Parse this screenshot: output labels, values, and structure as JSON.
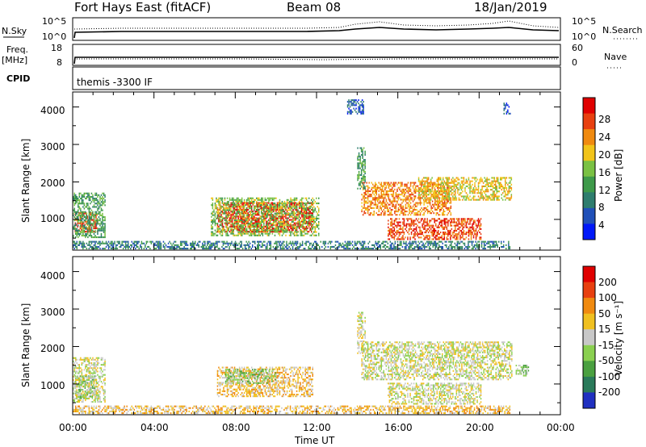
{
  "header": {
    "station": "Fort Hays East (fitACF)",
    "beam": "Beam 08",
    "date": "18/Jan/2019"
  },
  "strips": {
    "nsky_label": "N.Sky",
    "nsky_ticks": [
      "10^5",
      "10^0"
    ],
    "nsearch_label": "N.Search",
    "nsearch_ticks": [
      "10^5",
      "10^0"
    ],
    "freq_label": "Freq.",
    "freq_unit": "[MHz]",
    "freq_ticks": [
      "18",
      "8"
    ],
    "nave_label": "Nave",
    "nave_ticks": [
      "60",
      "0"
    ],
    "cpid_label": "CPID",
    "cpid_text": "themis -3300 IF"
  },
  "chart_data": [
    {
      "type": "heatmap",
      "name": "power-panel",
      "ylabel": "Slant Range [km]",
      "yticks": [
        "4000",
        "3000",
        "2000",
        "1000"
      ],
      "ylim": [
        180,
        4400
      ],
      "xlim": [
        0,
        24
      ],
      "colorbar": {
        "label": "Power [dB]",
        "ticks": [
          "28",
          "24",
          "20",
          "16",
          "12",
          "8",
          "4"
        ],
        "colors": [
          "#0018f8",
          "#2050b8",
          "#2e7d6e",
          "#3e9a4a",
          "#7ac143",
          "#f2c41a",
          "#f08a10",
          "#e84010",
          "#e00000"
        ]
      },
      "regions": [
        {
          "t0": 0.1,
          "t1": 1.2,
          "r0": 650,
          "r1": 1150,
          "level": 7
        },
        {
          "t0": 0.0,
          "t1": 1.6,
          "r0": 500,
          "r1": 1700,
          "level": 3
        },
        {
          "t0": 7.1,
          "t1": 11.8,
          "r0": 650,
          "r1": 1450,
          "level": 8
        },
        {
          "t0": 6.8,
          "t1": 12.1,
          "r0": 550,
          "r1": 1550,
          "level": 4
        },
        {
          "t0": 14.2,
          "t1": 18.6,
          "r0": 1100,
          "r1": 2000,
          "level": 6
        },
        {
          "t0": 17.0,
          "t1": 21.6,
          "r0": 1500,
          "r1": 2100,
          "level": 5
        },
        {
          "t0": 15.5,
          "t1": 20.1,
          "r0": 450,
          "r1": 1000,
          "level": 7
        },
        {
          "t0": 14.0,
          "t1": 14.4,
          "r0": 1800,
          "r1": 2900,
          "level": 3
        },
        {
          "t0": 0.0,
          "t1": 21.5,
          "r0": 200,
          "r1": 420,
          "level": 2
        },
        {
          "t0": 13.5,
          "t1": 14.3,
          "r0": 3800,
          "r1": 4200,
          "level": 1
        },
        {
          "t0": 21.2,
          "t1": 21.5,
          "r0": 3800,
          "r1": 4100,
          "level": 1
        }
      ]
    },
    {
      "type": "heatmap",
      "name": "velocity-panel",
      "ylabel": "Slant Range [km]",
      "yticks": [
        "4000",
        "3000",
        "2000",
        "1000"
      ],
      "ylim": [
        180,
        4400
      ],
      "xlim": [
        0,
        24
      ],
      "xticks": [
        "00:00",
        "04:00",
        "08:00",
        "12:00",
        "16:00",
        "20:00",
        "00:00"
      ],
      "xlabel": "Time UT",
      "colorbar": {
        "label": "Velocity [m s⁻¹]",
        "ticks": [
          "200",
          "100",
          "50",
          "15",
          "-15",
          "-50",
          "-100",
          "-200"
        ],
        "colors": [
          "#2030c0",
          "#2a7a5a",
          "#4aa040",
          "#8ad050",
          "#c8c8c8",
          "#f0c020",
          "#f08a10",
          "#e84010",
          "#e00000"
        ]
      },
      "regions": [
        {
          "t0": 0.1,
          "t1": 1.2,
          "r0": 600,
          "r1": 1200,
          "level": 3
        },
        {
          "t0": 0.0,
          "t1": 1.6,
          "r0": 500,
          "r1": 1700,
          "level": 4
        },
        {
          "t0": 7.1,
          "t1": 11.8,
          "r0": 650,
          "r1": 1450,
          "level": 5
        },
        {
          "t0": 7.5,
          "t1": 10.0,
          "r0": 1000,
          "r1": 1400,
          "level": 3
        },
        {
          "t0": 14.2,
          "t1": 21.6,
          "r0": 1100,
          "r1": 2100,
          "level": 4
        },
        {
          "t0": 15.5,
          "t1": 20.1,
          "r0": 450,
          "r1": 1000,
          "level": 4
        },
        {
          "t0": 14.0,
          "t1": 14.4,
          "r0": 1800,
          "r1": 2900,
          "level": 4
        },
        {
          "t0": 0.0,
          "t1": 21.5,
          "r0": 200,
          "r1": 420,
          "level": 5
        },
        {
          "t0": 21.8,
          "t1": 22.4,
          "r0": 1200,
          "r1": 1500,
          "level": 3
        }
      ]
    }
  ]
}
